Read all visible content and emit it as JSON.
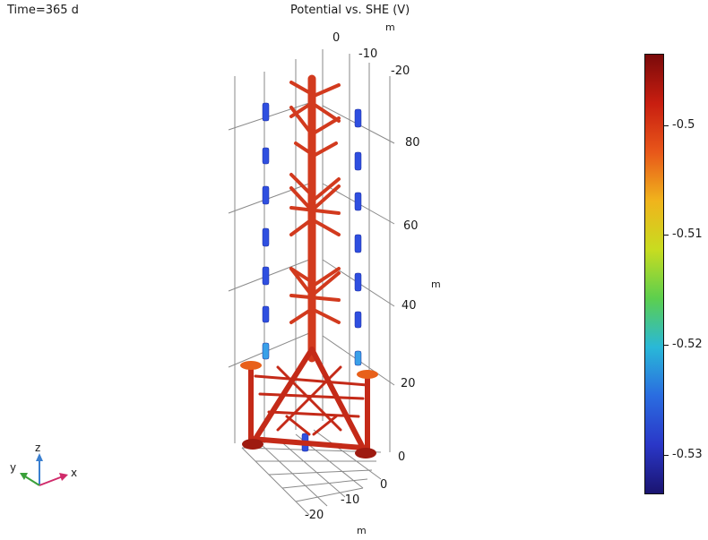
{
  "header": {
    "time_label": "Time=365 d",
    "plot_title": "Potential vs. SHE (V)"
  },
  "axes": {
    "z_ticks": [
      "80",
      "60",
      "40",
      "20",
      "0"
    ],
    "z_unit": "m",
    "top_ticks": [
      "0",
      "-10",
      "-20"
    ],
    "top_unit": "m",
    "bottom_ticks": [
      "0",
      "-10",
      "-20"
    ],
    "bottom_unit": "m"
  },
  "triad": {
    "x": "x",
    "y": "y",
    "z": "z"
  },
  "colorbar": {
    "ticks": [
      "-0.5",
      "-0.51",
      "-0.52",
      "-0.53"
    ],
    "colors": [
      "#7a0a0a",
      "#c81e10",
      "#e8571a",
      "#f0b41c",
      "#c8dc20",
      "#5ccf4e",
      "#29b8d8",
      "#2a6ce0",
      "#2a37c8",
      "#1a1470"
    ]
  },
  "colors": {
    "structure": "#d23a1e",
    "structure_dark": "#9e1a10",
    "anode": "#2f4fe0",
    "grid": "#8a8a8a"
  }
}
